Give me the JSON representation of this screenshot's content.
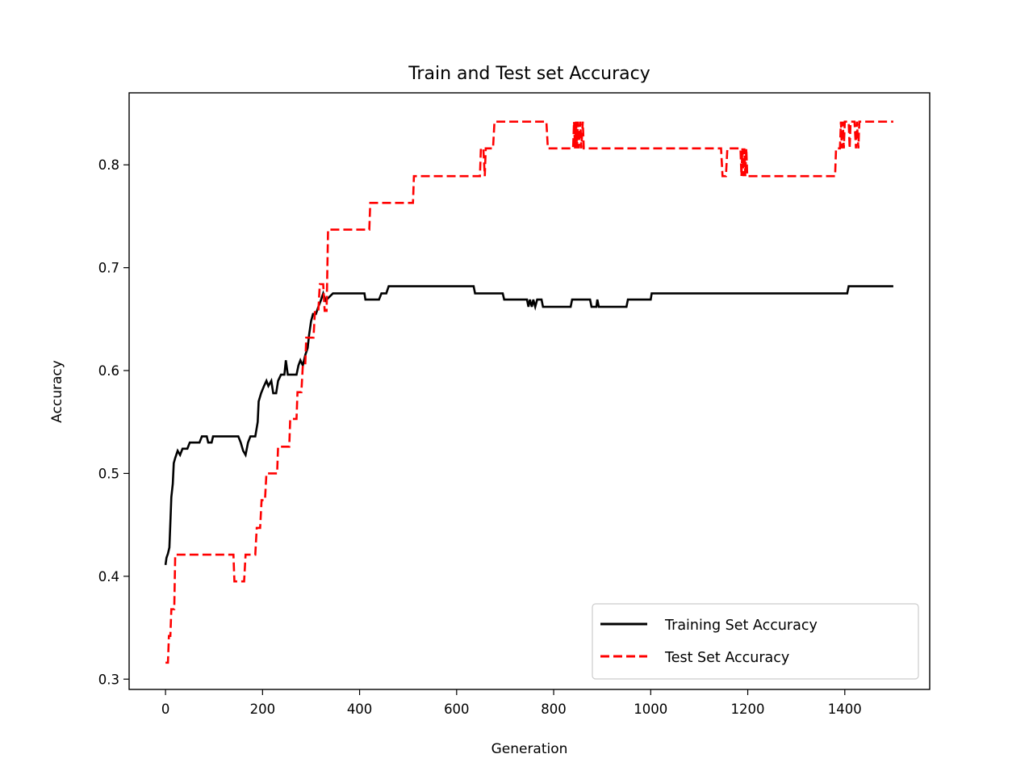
{
  "chart_data": {
    "type": "line",
    "title": "Train and Test set Accuracy",
    "xlabel": "Generation",
    "ylabel": "Accuracy",
    "xlim": [
      -75,
      1575
    ],
    "ylim": [
      0.29,
      0.87
    ],
    "xticks": [
      0,
      200,
      400,
      600,
      800,
      1000,
      1200,
      1400
    ],
    "yticks": [
      0.3,
      0.4,
      0.5,
      0.6,
      0.7,
      0.8
    ],
    "xtick_labels": [
      "0",
      "200",
      "400",
      "600",
      "800",
      "1000",
      "1200",
      "1400"
    ],
    "ytick_labels": [
      "0.3",
      "0.4",
      "0.5",
      "0.6",
      "0.7",
      "0.8"
    ],
    "grid": false,
    "legend_position": "lower-right",
    "series": [
      {
        "name": "Training Set Accuracy",
        "color": "#000000",
        "style": "solid",
        "points": [
          [
            0,
            0.411
          ],
          [
            2,
            0.418
          ],
          [
            5,
            0.422
          ],
          [
            8,
            0.428
          ],
          [
            10,
            0.452
          ],
          [
            12,
            0.477
          ],
          [
            15,
            0.49
          ],
          [
            17,
            0.51
          ],
          [
            20,
            0.515
          ],
          [
            25,
            0.522
          ],
          [
            30,
            0.518
          ],
          [
            35,
            0.524
          ],
          [
            45,
            0.524
          ],
          [
            50,
            0.53
          ],
          [
            70,
            0.53
          ],
          [
            75,
            0.536
          ],
          [
            85,
            0.536
          ],
          [
            88,
            0.53
          ],
          [
            95,
            0.53
          ],
          [
            98,
            0.536
          ],
          [
            135,
            0.536
          ],
          [
            150,
            0.536
          ],
          [
            155,
            0.53
          ],
          [
            160,
            0.522
          ],
          [
            165,
            0.518
          ],
          [
            170,
            0.53
          ],
          [
            175,
            0.536
          ],
          [
            185,
            0.536
          ],
          [
            190,
            0.55
          ],
          [
            192,
            0.57
          ],
          [
            197,
            0.578
          ],
          [
            203,
            0.585
          ],
          [
            208,
            0.59
          ],
          [
            212,
            0.585
          ],
          [
            218,
            0.59
          ],
          [
            222,
            0.578
          ],
          [
            228,
            0.578
          ],
          [
            232,
            0.59
          ],
          [
            238,
            0.596
          ],
          [
            245,
            0.596
          ],
          [
            248,
            0.61
          ],
          [
            252,
            0.596
          ],
          [
            270,
            0.596
          ],
          [
            274,
            0.605
          ],
          [
            278,
            0.61
          ],
          [
            283,
            0.605
          ],
          [
            288,
            0.615
          ],
          [
            293,
            0.622
          ],
          [
            296,
            0.635
          ],
          [
            300,
            0.648
          ],
          [
            304,
            0.655
          ],
          [
            310,
            0.655
          ],
          [
            315,
            0.662
          ],
          [
            320,
            0.668
          ],
          [
            325,
            0.675
          ],
          [
            330,
            0.668
          ],
          [
            345,
            0.675
          ],
          [
            410,
            0.675
          ],
          [
            412,
            0.669
          ],
          [
            440,
            0.669
          ],
          [
            445,
            0.675
          ],
          [
            455,
            0.675
          ],
          [
            460,
            0.682
          ],
          [
            635,
            0.682
          ],
          [
            638,
            0.675
          ],
          [
            695,
            0.675
          ],
          [
            698,
            0.669
          ],
          [
            745,
            0.669
          ],
          [
            748,
            0.662
          ],
          [
            751,
            0.669
          ],
          [
            755,
            0.662
          ],
          [
            758,
            0.669
          ],
          [
            762,
            0.662
          ],
          [
            766,
            0.669
          ],
          [
            775,
            0.669
          ],
          [
            778,
            0.662
          ],
          [
            835,
            0.662
          ],
          [
            838,
            0.669
          ],
          [
            875,
            0.669
          ],
          [
            878,
            0.662
          ],
          [
            888,
            0.662
          ],
          [
            890,
            0.669
          ],
          [
            893,
            0.662
          ],
          [
            950,
            0.662
          ],
          [
            953,
            0.669
          ],
          [
            1000,
            0.669
          ],
          [
            1002,
            0.675
          ],
          [
            1405,
            0.675
          ],
          [
            1408,
            0.682
          ],
          [
            1500,
            0.682
          ]
        ]
      },
      {
        "name": "Test Set Accuracy",
        "color": "#ff0000",
        "style": "dashed",
        "points": [
          [
            0,
            0.316
          ],
          [
            5,
            0.316
          ],
          [
            7,
            0.342
          ],
          [
            10,
            0.342
          ],
          [
            12,
            0.368
          ],
          [
            18,
            0.368
          ],
          [
            20,
            0.421
          ],
          [
            140,
            0.421
          ],
          [
            142,
            0.395
          ],
          [
            162,
            0.395
          ],
          [
            165,
            0.421
          ],
          [
            185,
            0.421
          ],
          [
            188,
            0.447
          ],
          [
            195,
            0.447
          ],
          [
            198,
            0.474
          ],
          [
            205,
            0.474
          ],
          [
            208,
            0.5
          ],
          [
            230,
            0.5
          ],
          [
            232,
            0.526
          ],
          [
            255,
            0.526
          ],
          [
            257,
            0.553
          ],
          [
            270,
            0.553
          ],
          [
            272,
            0.579
          ],
          [
            280,
            0.579
          ],
          [
            283,
            0.605
          ],
          [
            288,
            0.605
          ],
          [
            290,
            0.632
          ],
          [
            298,
            0.632
          ],
          [
            300,
            0.632
          ],
          [
            305,
            0.632
          ],
          [
            308,
            0.658
          ],
          [
            315,
            0.658
          ],
          [
            318,
            0.684
          ],
          [
            325,
            0.684
          ],
          [
            328,
            0.658
          ],
          [
            332,
            0.658
          ],
          [
            335,
            0.737
          ],
          [
            420,
            0.737
          ],
          [
            422,
            0.763
          ],
          [
            510,
            0.763
          ],
          [
            512,
            0.789
          ],
          [
            648,
            0.789
          ],
          [
            650,
            0.816
          ],
          [
            655,
            0.816
          ],
          [
            658,
            0.789
          ],
          [
            660,
            0.816
          ],
          [
            675,
            0.816
          ],
          [
            678,
            0.842
          ],
          [
            785,
            0.842
          ],
          [
            788,
            0.816
          ],
          [
            840,
            0.816
          ],
          [
            842,
            0.842
          ],
          [
            844,
            0.816
          ],
          [
            846,
            0.842
          ],
          [
            848,
            0.816
          ],
          [
            850,
            0.842
          ],
          [
            852,
            0.816
          ],
          [
            855,
            0.842
          ],
          [
            857,
            0.816
          ],
          [
            860,
            0.842
          ],
          [
            862,
            0.816
          ],
          [
            1145,
            0.816
          ],
          [
            1148,
            0.789
          ],
          [
            1155,
            0.789
          ],
          [
            1158,
            0.816
          ],
          [
            1185,
            0.816
          ],
          [
            1187,
            0.789
          ],
          [
            1189,
            0.816
          ],
          [
            1191,
            0.789
          ],
          [
            1193,
            0.816
          ],
          [
            1195,
            0.789
          ],
          [
            1197,
            0.816
          ],
          [
            1199,
            0.789
          ],
          [
            1380,
            0.789
          ],
          [
            1382,
            0.816
          ],
          [
            1390,
            0.816
          ],
          [
            1392,
            0.842
          ],
          [
            1394,
            0.816
          ],
          [
            1396,
            0.842
          ],
          [
            1398,
            0.816
          ],
          [
            1400,
            0.842
          ],
          [
            1408,
            0.842
          ],
          [
            1410,
            0.816
          ],
          [
            1412,
            0.842
          ],
          [
            1420,
            0.842
          ],
          [
            1423,
            0.816
          ],
          [
            1425,
            0.842
          ],
          [
            1428,
            0.816
          ],
          [
            1430,
            0.842
          ],
          [
            1500,
            0.842
          ]
        ]
      }
    ]
  }
}
